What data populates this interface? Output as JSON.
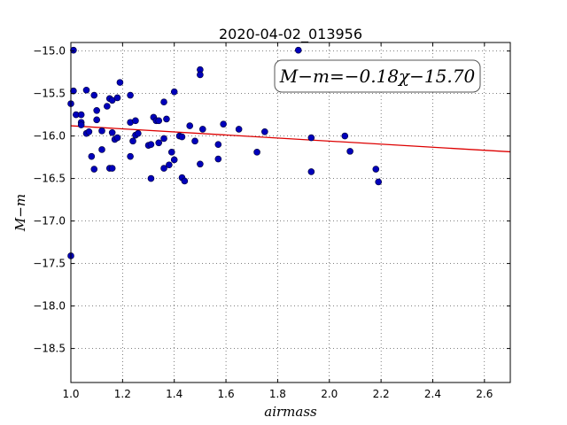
{
  "chart_data": {
    "type": "scatter",
    "title": "2020-04-02_013956",
    "xlabel": "airmass",
    "ylabel": "M−m",
    "xlim": [
      1.0,
      2.7
    ],
    "ylim": [
      -18.9,
      -14.9
    ],
    "y_inverted": true,
    "xticks": [
      "1.0",
      "1.2",
      "1.4",
      "1.6",
      "1.8",
      "2.0",
      "2.2",
      "2.4",
      "2.6"
    ],
    "yticks": [
      "−15.0",
      "−15.5",
      "−16.0",
      "−16.5",
      "−17.0",
      "−17.5",
      "−18.0",
      "−18.5"
    ],
    "grid": true,
    "annotation": "M−m=−0.18χ−15.70",
    "annotation_position": "top-right",
    "fit_line": {
      "slope": -0.18,
      "intercept": -15.7,
      "color": "#dd0000"
    },
    "point_color": "#0000bb",
    "points": [
      {
        "x": 1.0,
        "y": -15.62
      },
      {
        "x": 1.01,
        "y": -14.99
      },
      {
        "x": 1.01,
        "y": -15.47
      },
      {
        "x": 1.02,
        "y": -15.75
      },
      {
        "x": 1.04,
        "y": -15.75
      },
      {
        "x": 1.04,
        "y": -15.84
      },
      {
        "x": 1.04,
        "y": -15.87
      },
      {
        "x": 1.06,
        "y": -15.46
      },
      {
        "x": 1.06,
        "y": -15.97
      },
      {
        "x": 1.07,
        "y": -15.95
      },
      {
        "x": 1.08,
        "y": -16.24
      },
      {
        "x": 1.09,
        "y": -16.39
      },
      {
        "x": 1.09,
        "y": -15.52
      },
      {
        "x": 1.1,
        "y": -15.7
      },
      {
        "x": 1.1,
        "y": -15.81
      },
      {
        "x": 1.12,
        "y": -15.94
      },
      {
        "x": 1.12,
        "y": -16.16
      },
      {
        "x": 1.14,
        "y": -15.65
      },
      {
        "x": 1.15,
        "y": -15.56
      },
      {
        "x": 1.15,
        "y": -16.38
      },
      {
        "x": 1.16,
        "y": -16.38
      },
      {
        "x": 1.16,
        "y": -15.58
      },
      {
        "x": 1.16,
        "y": -15.96
      },
      {
        "x": 1.17,
        "y": -16.04
      },
      {
        "x": 1.18,
        "y": -16.02
      },
      {
        "x": 1.18,
        "y": -15.55
      },
      {
        "x": 1.19,
        "y": -15.37
      },
      {
        "x": 1.23,
        "y": -15.52
      },
      {
        "x": 1.23,
        "y": -15.84
      },
      {
        "x": 1.23,
        "y": -16.24
      },
      {
        "x": 1.24,
        "y": -16.06
      },
      {
        "x": 1.25,
        "y": -15.82
      },
      {
        "x": 1.25,
        "y": -15.99
      },
      {
        "x": 1.26,
        "y": -15.97
      },
      {
        "x": 1.3,
        "y": -16.11
      },
      {
        "x": 1.31,
        "y": -16.1
      },
      {
        "x": 1.31,
        "y": -16.5
      },
      {
        "x": 1.32,
        "y": -15.78
      },
      {
        "x": 1.33,
        "y": -15.82
      },
      {
        "x": 1.34,
        "y": -15.82
      },
      {
        "x": 1.34,
        "y": -16.08
      },
      {
        "x": 1.36,
        "y": -16.03
      },
      {
        "x": 1.36,
        "y": -15.6
      },
      {
        "x": 1.36,
        "y": -16.38
      },
      {
        "x": 1.37,
        "y": -15.8
      },
      {
        "x": 1.38,
        "y": -16.34
      },
      {
        "x": 1.39,
        "y": -16.19
      },
      {
        "x": 1.4,
        "y": -16.28
      },
      {
        "x": 1.4,
        "y": -15.48
      },
      {
        "x": 1.42,
        "y": -16.0
      },
      {
        "x": 1.43,
        "y": -16.01
      },
      {
        "x": 1.43,
        "y": -16.49
      },
      {
        "x": 1.44,
        "y": -16.53
      },
      {
        "x": 1.46,
        "y": -15.88
      },
      {
        "x": 1.48,
        "y": -16.06
      },
      {
        "x": 1.5,
        "y": -16.33
      },
      {
        "x": 1.5,
        "y": -15.22
      },
      {
        "x": 1.5,
        "y": -15.28
      },
      {
        "x": 1.51,
        "y": -15.92
      },
      {
        "x": 1.57,
        "y": -16.1
      },
      {
        "x": 1.57,
        "y": -16.27
      },
      {
        "x": 1.59,
        "y": -15.86
      },
      {
        "x": 1.65,
        "y": -15.92
      },
      {
        "x": 1.72,
        "y": -16.19
      },
      {
        "x": 1.75,
        "y": -15.95
      },
      {
        "x": 1.88,
        "y": -14.99
      },
      {
        "x": 1.93,
        "y": -16.02
      },
      {
        "x": 1.93,
        "y": -16.42
      },
      {
        "x": 2.06,
        "y": -16.0
      },
      {
        "x": 2.08,
        "y": -16.18
      },
      {
        "x": 2.18,
        "y": -16.39
      },
      {
        "x": 2.19,
        "y": -16.54
      },
      {
        "x": 1.0,
        "y": -17.41
      }
    ]
  }
}
